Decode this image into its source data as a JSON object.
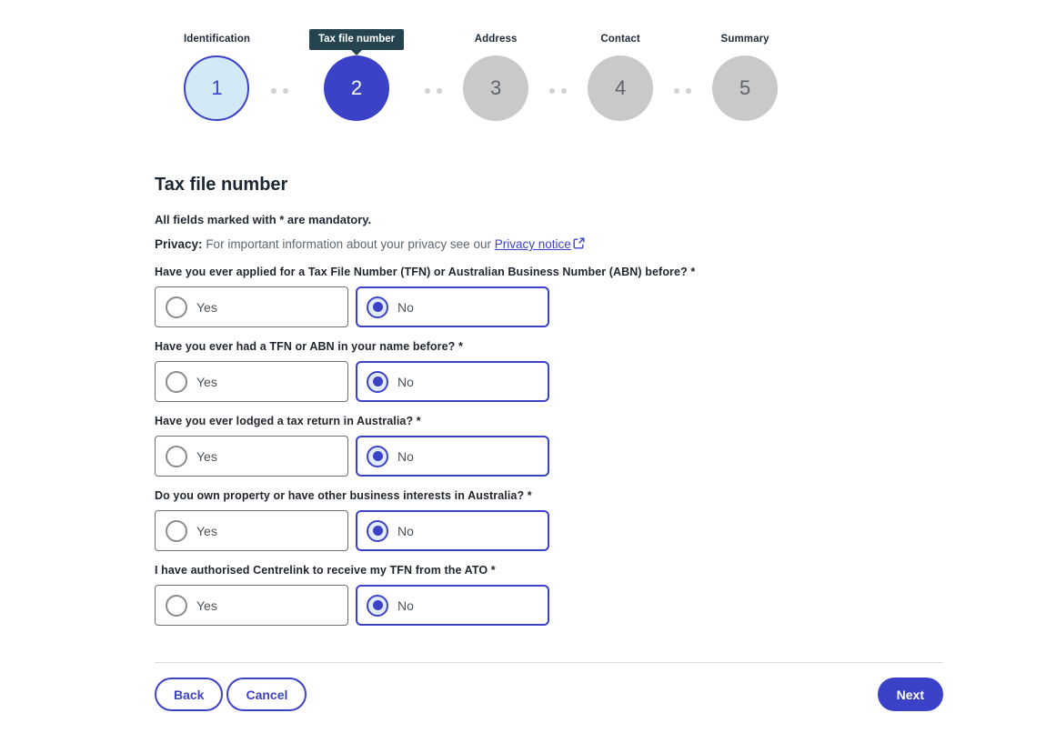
{
  "colors": {
    "accent_indigo": "#3b42c7",
    "badge_dark": "#25444f",
    "visited_fill": "#d3eaf6",
    "upcoming_fill": "#c9c9c9",
    "radio_selected_fill": "#e2ebfa"
  },
  "stepper": {
    "steps": [
      {
        "number": "1",
        "label": "Identification",
        "state": "visited"
      },
      {
        "number": "2",
        "label": "Tax file number",
        "state": "active"
      },
      {
        "number": "3",
        "label": "Address",
        "state": "upcoming"
      },
      {
        "number": "4",
        "label": "Contact",
        "state": "upcoming"
      },
      {
        "number": "5",
        "label": "Summary",
        "state": "upcoming"
      }
    ]
  },
  "page": {
    "title": "Tax file number",
    "mandatory_note": "All fields marked with * are mandatory.",
    "privacy_label": "Privacy:",
    "privacy_text": "For important information about your privacy see our",
    "privacy_link": "Privacy notice",
    "privacy_link_icon": "external-link-icon"
  },
  "questions": [
    {
      "label": "Have you ever applied for a Tax File Number (TFN) or Australian Business Number (ABN) before? *",
      "options": [
        "Yes",
        "No"
      ],
      "selected": "No"
    },
    {
      "label": "Have you ever had a TFN or ABN in your name before? *",
      "options": [
        "Yes",
        "No"
      ],
      "selected": "No"
    },
    {
      "label": "Have you ever lodged a tax return in Australia? *",
      "options": [
        "Yes",
        "No"
      ],
      "selected": "No"
    },
    {
      "label": "Do you own property or have other business interests in Australia? *",
      "options": [
        "Yes",
        "No"
      ],
      "selected": "No"
    },
    {
      "label": "I have authorised Centrelink to receive my TFN from the ATO *",
      "options": [
        "Yes",
        "No"
      ],
      "selected": "No"
    }
  ],
  "actions": {
    "back": "Back",
    "cancel": "Cancel",
    "next": "Next"
  }
}
